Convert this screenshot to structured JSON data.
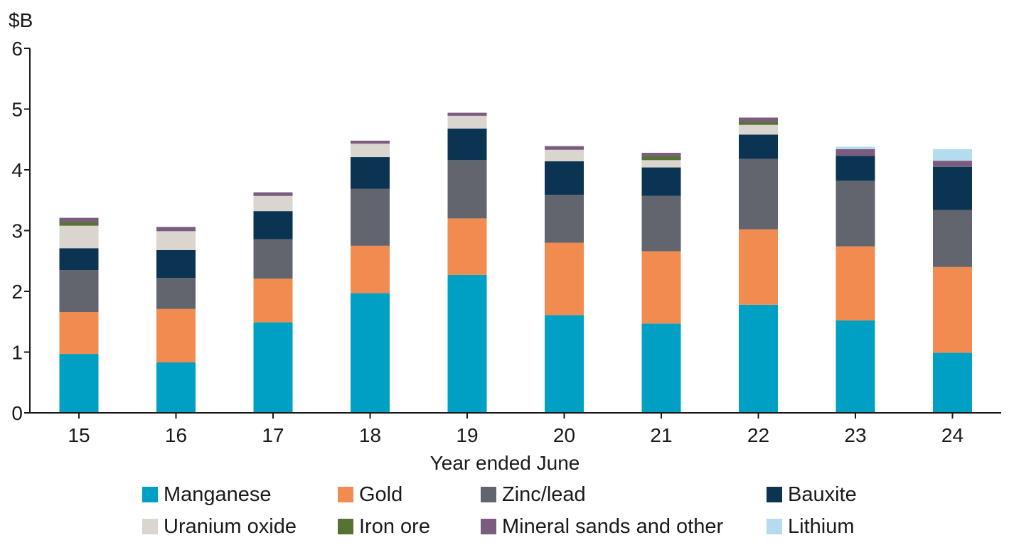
{
  "chart_data": {
    "type": "bar",
    "stacked": true,
    "ylabel": "$B",
    "xlabel": "Year ended June",
    "ylim": [
      0,
      6
    ],
    "yticks": [
      "0",
      "1",
      "2",
      "3",
      "4",
      "5",
      "6"
    ],
    "categories": [
      "15",
      "16",
      "17",
      "18",
      "19",
      "20",
      "21",
      "22",
      "23",
      "24"
    ],
    "grid": false,
    "legend_position": "bottom",
    "series": [
      {
        "name": "Manganese",
        "color": "#00a0c4",
        "values": [
          0.97,
          0.83,
          1.49,
          1.97,
          2.27,
          1.61,
          1.47,
          1.78,
          1.52,
          0.99
        ]
      },
      {
        "name": "Gold",
        "color": "#f28b50",
        "values": [
          0.69,
          0.88,
          0.72,
          0.78,
          0.93,
          1.19,
          1.19,
          1.24,
          1.22,
          1.41
        ]
      },
      {
        "name": "Zinc/lead",
        "color": "#62646e",
        "values": [
          0.69,
          0.51,
          0.65,
          0.94,
          0.96,
          0.79,
          0.91,
          1.16,
          1.08,
          0.94
        ]
      },
      {
        "name": "Bauxite",
        "color": "#0b3352",
        "values": [
          0.36,
          0.46,
          0.46,
          0.52,
          0.52,
          0.55,
          0.47,
          0.4,
          0.41,
          0.71
        ]
      },
      {
        "name": "Uranium oxide",
        "color": "#dbd5cf",
        "values": [
          0.37,
          0.31,
          0.25,
          0.22,
          0.21,
          0.19,
          0.12,
          0.16,
          0.0,
          0.0
        ]
      },
      {
        "name": "Iron ore",
        "color": "#577334",
        "values": [
          0.06,
          0.0,
          0.0,
          0.0,
          0.0,
          0.0,
          0.07,
          0.05,
          0.0,
          0.0
        ]
      },
      {
        "name": "Mineral sands and other",
        "color": "#7a5c7e",
        "values": [
          0.07,
          0.07,
          0.06,
          0.05,
          0.05,
          0.06,
          0.05,
          0.07,
          0.11,
          0.1
        ]
      },
      {
        "name": "Lithium",
        "color": "#b5dcee",
        "values": [
          0.0,
          0.0,
          0.0,
          0.0,
          0.0,
          0.0,
          0.0,
          0.0,
          0.04,
          0.19
        ]
      }
    ]
  }
}
